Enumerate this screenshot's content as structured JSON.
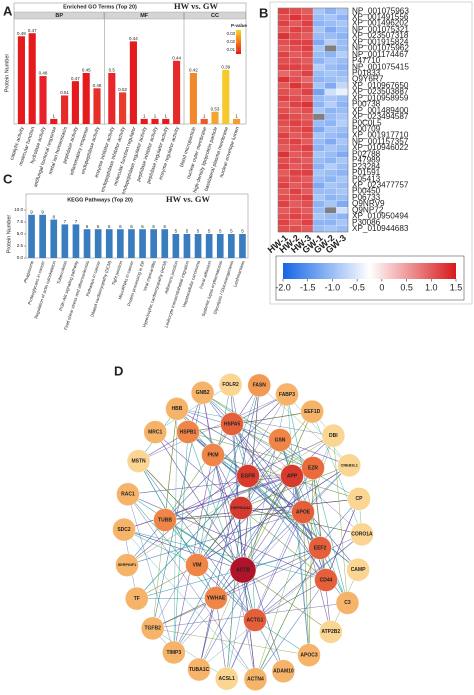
{
  "panel_labels": [
    "A",
    "B",
    "C",
    "D"
  ],
  "chart_data": [
    {
      "type": "bar",
      "title": "Enriched GO Terms (Top 20)",
      "subtitle": "HW vs. GW",
      "y_label": "Protein Number",
      "ylim": [
        0,
        10
      ],
      "facets": [
        {
          "name": "BP",
          "categories": [
            "catalytic activity",
            "molecular function",
            "hydrolase activity",
            "antifungal humoral response",
            "metal ion homeostasis",
            "peptidase activity",
            "inflammatory response",
            "endopeptidase activity"
          ],
          "values": [
            8.6,
            8.9,
            4.7,
            0.5,
            2.8,
            4.2,
            5.0,
            3.5
          ],
          "annotations": [
            "0.49",
            "0.47",
            "0.48",
            "1",
            "0.51",
            "0.47",
            "0.45",
            "0.48"
          ],
          "colors": [
            "#e41a1c",
            "#e41a1c",
            "#e8202a",
            "#e41a1c",
            "#e62a2a",
            "#e41a1c",
            "#e41a1c",
            "#e8302b"
          ]
        },
        {
          "name": "MF",
          "categories": [
            "enzyme inhibitor activity",
            "endopeptidase inhibitor activity",
            "molecular function regulator",
            "endopeptidase regulator activity",
            "peptidase inhibitor activity",
            "peptidase regulator activity",
            "enzyme regulator activity"
          ],
          "values": [
            5.0,
            3.1,
            8.1,
            0.5,
            0.5,
            0.5,
            6.2
          ],
          "annotations": [
            "0.5",
            "0.52",
            "0.44",
            "1",
            "1",
            "1",
            "0.44"
          ],
          "colors": [
            "#e8262b",
            "#ea3a2b",
            "#e41a1c",
            "#e41a1c",
            "#e41a1c",
            "#e41a1c",
            "#e62a2a"
          ]
        },
        {
          "name": "CC",
          "categories": [
            "blood microparticle",
            "nuclear outer membrane",
            "high-density lipoprotein particle",
            "basolateral plasma membrane",
            "nuclear envelope lumen"
          ],
          "values": [
            5.0,
            0.5,
            1.2,
            5.3,
            0.5
          ],
          "annotations": [
            "0.42",
            "1",
            "0.53",
            "0.39",
            "1"
          ],
          "colors": [
            "#f0882e",
            "#ec5a2c",
            "#f2a531",
            "#f7c82c",
            "#f39b2f"
          ]
        }
      ],
      "legend_title": "P-value",
      "legend_lim": [
        0.005,
        0.035
      ],
      "legend_ticks": [
        0.03,
        0.02,
        0.01
      ],
      "legend_colors": [
        "#e41a1c",
        "#ffd21f"
      ]
    },
    {
      "type": "heatmap",
      "rows": [
        "NP_001075963",
        "XP_001491556",
        "XP_001496202",
        "NP_001075321",
        "XP_023507318",
        "XP_001915824",
        "NP_001075962",
        "NP_001174467",
        "P47710",
        "NP_001075415",
        "P01833",
        "Q9Y6R7",
        "XP_010967650",
        "XP_023503887",
        "XP_010958959",
        "P00738",
        "XP_001489400",
        "XP_023494587",
        "P0C0L5",
        "P00709",
        "XP_001917710",
        "NP_001157357",
        "XP_010946022",
        "P02788",
        "P47989",
        "P23284",
        "P01591",
        "P05413",
        "XP_023477757",
        "P00450",
        "P06733",
        "Q9NRV9",
        "Q9NP72",
        "XP_010950494",
        "P30086",
        "XP_010944683"
      ],
      "columns": [
        "HW-1",
        "HW-2",
        "HW-3",
        "GW-1",
        "GW-2",
        "GW-3"
      ],
      "values": [
        [
          1.2,
          1.1,
          1.0,
          -0.9,
          -1.1,
          -0.9
        ],
        [
          1.1,
          1.3,
          1.1,
          -1.0,
          -0.9,
          -1.1
        ],
        [
          1.2,
          1.0,
          1.2,
          -1.1,
          -1.0,
          -0.9
        ],
        [
          1.0,
          1.2,
          1.1,
          -0.9,
          -1.2,
          -1.0
        ],
        [
          1.3,
          1.1,
          1.0,
          -1.0,
          -1.0,
          -1.1
        ],
        [
          1.1,
          1.2,
          1.2,
          -1.2,
          -0.8,
          -1.0
        ],
        [
          1.0,
          1.1,
          1.2,
          -0.9,
          null,
          -1.0
        ],
        [
          1.2,
          1.0,
          1.1,
          -1.0,
          -1.1,
          -0.8
        ],
        [
          1.1,
          1.1,
          1.0,
          -1.1,
          -0.9,
          -1.0
        ],
        [
          1.2,
          1.2,
          1.1,
          -0.8,
          -1.0,
          -1.1
        ],
        [
          0.9,
          1.0,
          1.2,
          -1.0,
          -0.9,
          -1.0
        ],
        [
          1.3,
          1.1,
          0.9,
          -1.1,
          -1.0,
          -0.9
        ],
        [
          1.0,
          1.3,
          1.1,
          -0.9,
          -1.2,
          -0.7
        ],
        [
          1.1,
          1.0,
          1.2,
          -1.3,
          -0.6,
          -0.4
        ],
        [
          1.2,
          1.1,
          1.0,
          -1.0,
          -0.9,
          -1.0
        ],
        [
          1.0,
          1.2,
          1.3,
          -1.1,
          -0.8,
          -1.1
        ],
        [
          1.1,
          1.0,
          1.1,
          -0.9,
          -1.1,
          -1.0
        ],
        [
          1.2,
          1.1,
          1.0,
          null,
          -1.0,
          -0.9
        ],
        [
          1.1,
          1.2,
          1.1,
          -1.0,
          -1.1,
          -0.8
        ],
        [
          1.0,
          1.1,
          1.2,
          -1.2,
          -0.9,
          -1.0
        ],
        [
          1.2,
          1.0,
          1.1,
          -0.9,
          -1.0,
          -1.1
        ],
        [
          1.1,
          1.2,
          1.0,
          -1.0,
          -1.2,
          -0.9
        ],
        [
          1.0,
          1.1,
          1.2,
          -1.1,
          -0.9,
          -1.0
        ],
        [
          1.3,
          1.0,
          1.1,
          -0.9,
          -1.0,
          -1.2
        ],
        [
          1.1,
          1.1,
          1.0,
          -1.0,
          -1.1,
          -0.9
        ],
        [
          1.2,
          1.0,
          1.1,
          -1.1,
          -0.8,
          -1.0
        ],
        [
          1.0,
          1.2,
          1.2,
          -0.9,
          -1.0,
          -1.1
        ],
        [
          1.1,
          1.1,
          1.0,
          -1.0,
          -1.1,
          -0.9
        ],
        [
          1.2,
          1.0,
          1.1,
          -1.2,
          -0.9,
          -1.0
        ],
        [
          1.0,
          1.2,
          1.0,
          -1.0,
          -1.0,
          -0.9
        ],
        [
          1.1,
          1.1,
          1.2,
          -0.9,
          -1.1,
          -1.0
        ],
        [
          1.2,
          1.0,
          1.1,
          -1.1,
          -0.9,
          -1.2
        ],
        [
          1.0,
          1.1,
          1.0,
          -1.0,
          null,
          -0.6
        ],
        [
          1.1,
          1.2,
          1.1,
          -0.9,
          -1.0,
          -1.1
        ],
        [
          1.2,
          1.0,
          1.2,
          -1.1,
          -1.1,
          -0.9
        ],
        [
          1.1,
          1.1,
          1.0,
          -1.0,
          -0.9,
          -1.0
        ]
      ],
      "zlim": [
        -2.0,
        1.5
      ],
      "zticks": [
        {
          "value": -2.0,
          "label": "-2.0"
        },
        -1.5,
        {
          "value": -1.0,
          "label": "-1.0"
        },
        -0.5,
        0,
        0.5,
        {
          "value": 1.0,
          "label": "1.0"
        },
        1.5
      ],
      "colors": [
        "#1565e8",
        "#ffffff",
        "#d7191c"
      ],
      "na_color": "#808080"
    },
    {
      "type": "bar",
      "title": "KEGG Pathways (Top 20)",
      "subtitle": "HW vs. GW",
      "y_label": "Protein Number",
      "categories": [
        "Phagosome",
        "Proteoglycans in cancer",
        "Regulation of actin cytoskeleton",
        "Tuberculosis",
        "PI3K-Akt signaling pathway",
        "Fluid shear stress and atherosclerosis",
        "Pathways in cancer",
        "Dilated cardiomyopathy (DCM)",
        "Tight junction",
        "MicroRNAs in cancer",
        "Protein processing in ER",
        "Viral myocarditis",
        "Hypertrophic cardiomyopathy (HCM)",
        "Adherens junction",
        "Leukocyte transendothelial migration",
        "Hepatocellular carcinoma",
        "Focal adhesion",
        "Systemic lupus erythematosus",
        "Glycolysis / Gluconeogenesis",
        "Leishmaniasis"
      ],
      "values": [
        9,
        9,
        8,
        7,
        7,
        6,
        6,
        6,
        6,
        6,
        6,
        6,
        6,
        5,
        5,
        5,
        5,
        5,
        5,
        5
      ],
      "color": "#3a7dbf",
      "ylim": [
        0,
        10
      ],
      "yticks": [
        {
          "value": 0,
          "label": "0.0"
        },
        2.5,
        {
          "value": 5,
          "label": "5.0"
        },
        7.5,
        {
          "value": 10,
          "label": "10.0"
        }
      ]
    }
  ],
  "network": {
    "nodes": [
      {
        "label": "FOLR2",
        "color": "#fbd592"
      },
      {
        "label": "FASN",
        "color": "#f29a55"
      },
      {
        "label": "FABP3",
        "color": "#f6b46b"
      },
      {
        "label": "EEF1D",
        "color": "#f6b46b"
      },
      {
        "label": "DBI",
        "color": "#fbd592"
      },
      {
        "label": "CREB3L1",
        "color": "#fbd592"
      },
      {
        "label": "CP",
        "color": "#fbd592"
      },
      {
        "label": "CORO1A",
        "color": "#fbd592"
      },
      {
        "label": "CAMP",
        "color": "#fbd592"
      },
      {
        "label": "C3",
        "color": "#f6b46b"
      },
      {
        "label": "ATP2B2",
        "color": "#fbd592"
      },
      {
        "label": "APOC3",
        "color": "#f6b46b"
      },
      {
        "label": "ADAM10",
        "color": "#f6b46b"
      },
      {
        "label": "ACTN4",
        "color": "#f6b46b"
      },
      {
        "label": "ACSL1",
        "color": "#fbd592"
      },
      {
        "label": "TUBA1C",
        "color": "#f6b46b"
      },
      {
        "label": "TIMP3",
        "color": "#f6b46b"
      },
      {
        "label": "TGFB2",
        "color": "#f6b46b"
      },
      {
        "label": "TF",
        "color": "#f6b46b"
      },
      {
        "label": "SERPINF1",
        "color": "#f6b46b"
      },
      {
        "label": "SDC2",
        "color": "#f6b46b"
      },
      {
        "label": "RAC1",
        "color": "#f6b46b"
      },
      {
        "label": "MSTN",
        "color": "#fbd592"
      },
      {
        "label": "MRC1",
        "color": "#f6b46b"
      },
      {
        "label": "HBB",
        "color": "#f6b46b"
      },
      {
        "label": "GNB2",
        "color": "#f6b46b"
      },
      {
        "label": "HSPB1",
        "color": "#ef8547"
      },
      {
        "label": "HSPA5",
        "color": "#e5603a"
      },
      {
        "label": "PKM",
        "color": "#ef8547"
      },
      {
        "label": "GSN",
        "color": "#ef8547"
      },
      {
        "label": "EZR",
        "color": "#ea6c3c"
      },
      {
        "label": "EGFR",
        "color": "#d83a2c"
      },
      {
        "label": "APP",
        "color": "#d83a2c"
      },
      {
        "label": "HSP90AA1",
        "color": "#d43a2f"
      },
      {
        "label": "APOE",
        "color": "#e5603a"
      },
      {
        "label": "TUBB",
        "color": "#ef8547"
      },
      {
        "label": "EEF2",
        "color": "#e5603a"
      },
      {
        "label": "VIM",
        "color": "#ef8547"
      },
      {
        "label": "CD44",
        "color": "#e5603a"
      },
      {
        "label": "ACTB",
        "color": "#b0142b"
      },
      {
        "label": "YWHAE",
        "color": "#ef8547"
      },
      {
        "label": "ACTG1",
        "color": "#e5603a"
      }
    ]
  }
}
